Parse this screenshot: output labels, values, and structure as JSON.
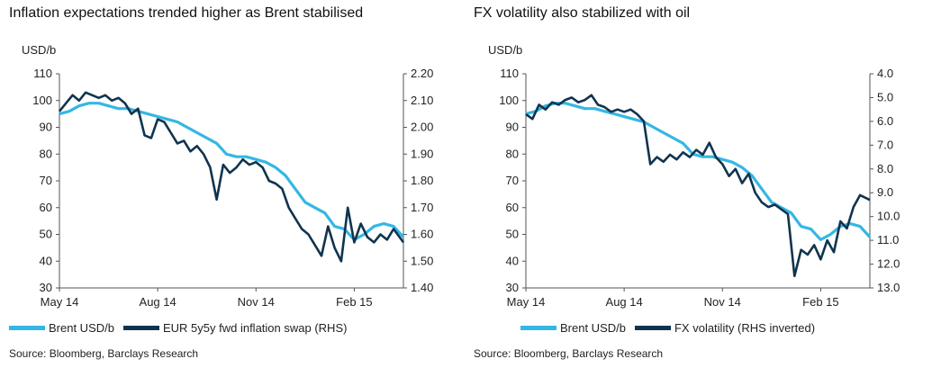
{
  "colors": {
    "brent": "#34b7e4",
    "dark": "#10344f",
    "axis": "#555555"
  },
  "chart_data": [
    {
      "type": "line",
      "title": "Inflation expectations trended higher as Brent stabilised",
      "ylabel_left": "USD/b",
      "ylim_left": [
        30,
        110
      ],
      "yticks_left": [
        "110",
        "100",
        "90",
        "80",
        "70",
        "60",
        "50",
        "40",
        "30"
      ],
      "ylim_right": [
        1.4,
        2.2
      ],
      "yticks_right": [
        "2.20",
        "2.10",
        "2.00",
        "1.90",
        "1.80",
        "1.70",
        "1.60",
        "1.50",
        "1.40"
      ],
      "x_labels": [
        "May 14",
        "Aug 14",
        "Nov 14",
        "Feb 15"
      ],
      "x_label_positions": [
        0,
        3,
        6,
        9
      ],
      "x_range": [
        0,
        10.5
      ],
      "legend": [
        "Brent USD/b",
        "EUR 5y5y fwd inflation swap (RHS)"
      ],
      "source": "Source: Bloomberg, Barclays Research",
      "series": [
        {
          "name": "Brent USD/b",
          "axis": "left",
          "x": [
            0,
            0.3,
            0.6,
            0.9,
            1.2,
            1.5,
            1.8,
            2.1,
            2.4,
            2.7,
            3.0,
            3.3,
            3.6,
            3.9,
            4.2,
            4.5,
            4.8,
            5.1,
            5.4,
            5.7,
            6.0,
            6.3,
            6.6,
            6.9,
            7.2,
            7.5,
            7.8,
            8.1,
            8.4,
            8.7,
            9.0,
            9.3,
            9.6,
            9.9,
            10.2,
            10.5
          ],
          "values": [
            95,
            96,
            98,
            99,
            99,
            98,
            97,
            97,
            96,
            95,
            94,
            93,
            92,
            90,
            88,
            86,
            84,
            80,
            79,
            79,
            78,
            77,
            75,
            72,
            67,
            62,
            60,
            58,
            53,
            52,
            48,
            50,
            53,
            54,
            53,
            49
          ]
        },
        {
          "name": "EUR 5y5y fwd inflation swap (RHS)",
          "axis": "right",
          "x": [
            0,
            0.2,
            0.4,
            0.6,
            0.8,
            1.0,
            1.2,
            1.4,
            1.6,
            1.8,
            2.0,
            2.2,
            2.4,
            2.6,
            2.8,
            3.0,
            3.2,
            3.4,
            3.6,
            3.8,
            4.0,
            4.2,
            4.4,
            4.6,
            4.8,
            5.0,
            5.2,
            5.4,
            5.6,
            5.8,
            6.0,
            6.2,
            6.4,
            6.6,
            6.8,
            7.0,
            7.2,
            7.4,
            7.6,
            7.8,
            8.0,
            8.2,
            8.4,
            8.6,
            8.8,
            9.0,
            9.2,
            9.4,
            9.6,
            9.8,
            10.0,
            10.2,
            10.5
          ],
          "values": [
            2.06,
            2.09,
            2.12,
            2.1,
            2.13,
            2.12,
            2.11,
            2.12,
            2.1,
            2.11,
            2.09,
            2.05,
            2.07,
            1.97,
            1.96,
            2.03,
            2.02,
            1.98,
            1.94,
            1.95,
            1.91,
            1.93,
            1.9,
            1.85,
            1.73,
            1.86,
            1.83,
            1.85,
            1.88,
            1.86,
            1.87,
            1.85,
            1.8,
            1.79,
            1.77,
            1.7,
            1.66,
            1.62,
            1.6,
            1.56,
            1.52,
            1.63,
            1.55,
            1.5,
            1.7,
            1.57,
            1.64,
            1.59,
            1.57,
            1.6,
            1.58,
            1.62,
            1.57
          ]
        }
      ]
    },
    {
      "type": "line",
      "title": "FX volatility also stabilized with oil",
      "ylabel_left": "USD/b",
      "ylim_left": [
        30,
        110
      ],
      "yticks_left": [
        "110",
        "100",
        "90",
        "80",
        "70",
        "60",
        "50",
        "40",
        "30"
      ],
      "ylim_right_inverted": [
        4.0,
        13.0
      ],
      "yticks_right": [
        "4.0",
        "5.0",
        "6.0",
        "7.0",
        "8.0",
        "9.0",
        "10.0",
        "11.0",
        "12.0",
        "13.0"
      ],
      "x_labels": [
        "May 14",
        "Aug 14",
        "Nov 14",
        "Feb 15"
      ],
      "x_label_positions": [
        0,
        3,
        6,
        9
      ],
      "x_range": [
        0,
        10.5
      ],
      "legend": [
        "Brent USD/b",
        "FX volatility (RHS inverted)"
      ],
      "source": "Source: Bloomberg, Barclays Research",
      "series": [
        {
          "name": "Brent USD/b",
          "axis": "left",
          "x": [
            0,
            0.3,
            0.6,
            0.9,
            1.2,
            1.5,
            1.8,
            2.1,
            2.4,
            2.7,
            3.0,
            3.3,
            3.6,
            3.9,
            4.2,
            4.5,
            4.8,
            5.1,
            5.4,
            5.7,
            6.0,
            6.3,
            6.6,
            6.9,
            7.2,
            7.5,
            7.8,
            8.1,
            8.4,
            8.7,
            9.0,
            9.3,
            9.6,
            9.9,
            10.2,
            10.5
          ],
          "values": [
            95,
            96,
            98,
            99,
            99,
            98,
            97,
            97,
            96,
            95,
            94,
            93,
            92,
            90,
            88,
            86,
            84,
            80,
            79,
            79,
            78,
            77,
            75,
            72,
            67,
            62,
            60,
            58,
            53,
            52,
            48,
            50,
            53,
            54,
            53,
            49
          ]
        },
        {
          "name": "FX volatility (RHS inverted)",
          "axis": "right",
          "x": [
            0,
            0.2,
            0.4,
            0.6,
            0.8,
            1.0,
            1.2,
            1.4,
            1.6,
            1.8,
            2.0,
            2.2,
            2.4,
            2.6,
            2.8,
            3.0,
            3.2,
            3.4,
            3.6,
            3.8,
            4.0,
            4.2,
            4.4,
            4.6,
            4.8,
            5.0,
            5.2,
            5.4,
            5.6,
            5.8,
            6.0,
            6.2,
            6.4,
            6.6,
            6.8,
            7.0,
            7.2,
            7.4,
            7.6,
            7.8,
            8.0,
            8.2,
            8.4,
            8.6,
            8.8,
            9.0,
            9.2,
            9.4,
            9.6,
            9.8,
            10.0,
            10.2,
            10.5
          ],
          "values": [
            5.7,
            5.9,
            5.3,
            5.5,
            5.2,
            5.3,
            5.1,
            5.0,
            5.2,
            5.1,
            4.9,
            5.3,
            5.4,
            5.6,
            5.5,
            5.6,
            5.5,
            5.7,
            6.0,
            7.8,
            7.5,
            7.7,
            7.4,
            7.6,
            7.3,
            7.5,
            7.2,
            7.4,
            6.9,
            7.5,
            7.8,
            8.3,
            8.0,
            8.6,
            8.2,
            9.0,
            9.4,
            9.6,
            9.5,
            9.7,
            9.9,
            12.5,
            11.4,
            11.6,
            11.2,
            11.8,
            11.0,
            11.5,
            10.2,
            10.5,
            9.6,
            9.1,
            9.3
          ]
        }
      ]
    }
  ]
}
